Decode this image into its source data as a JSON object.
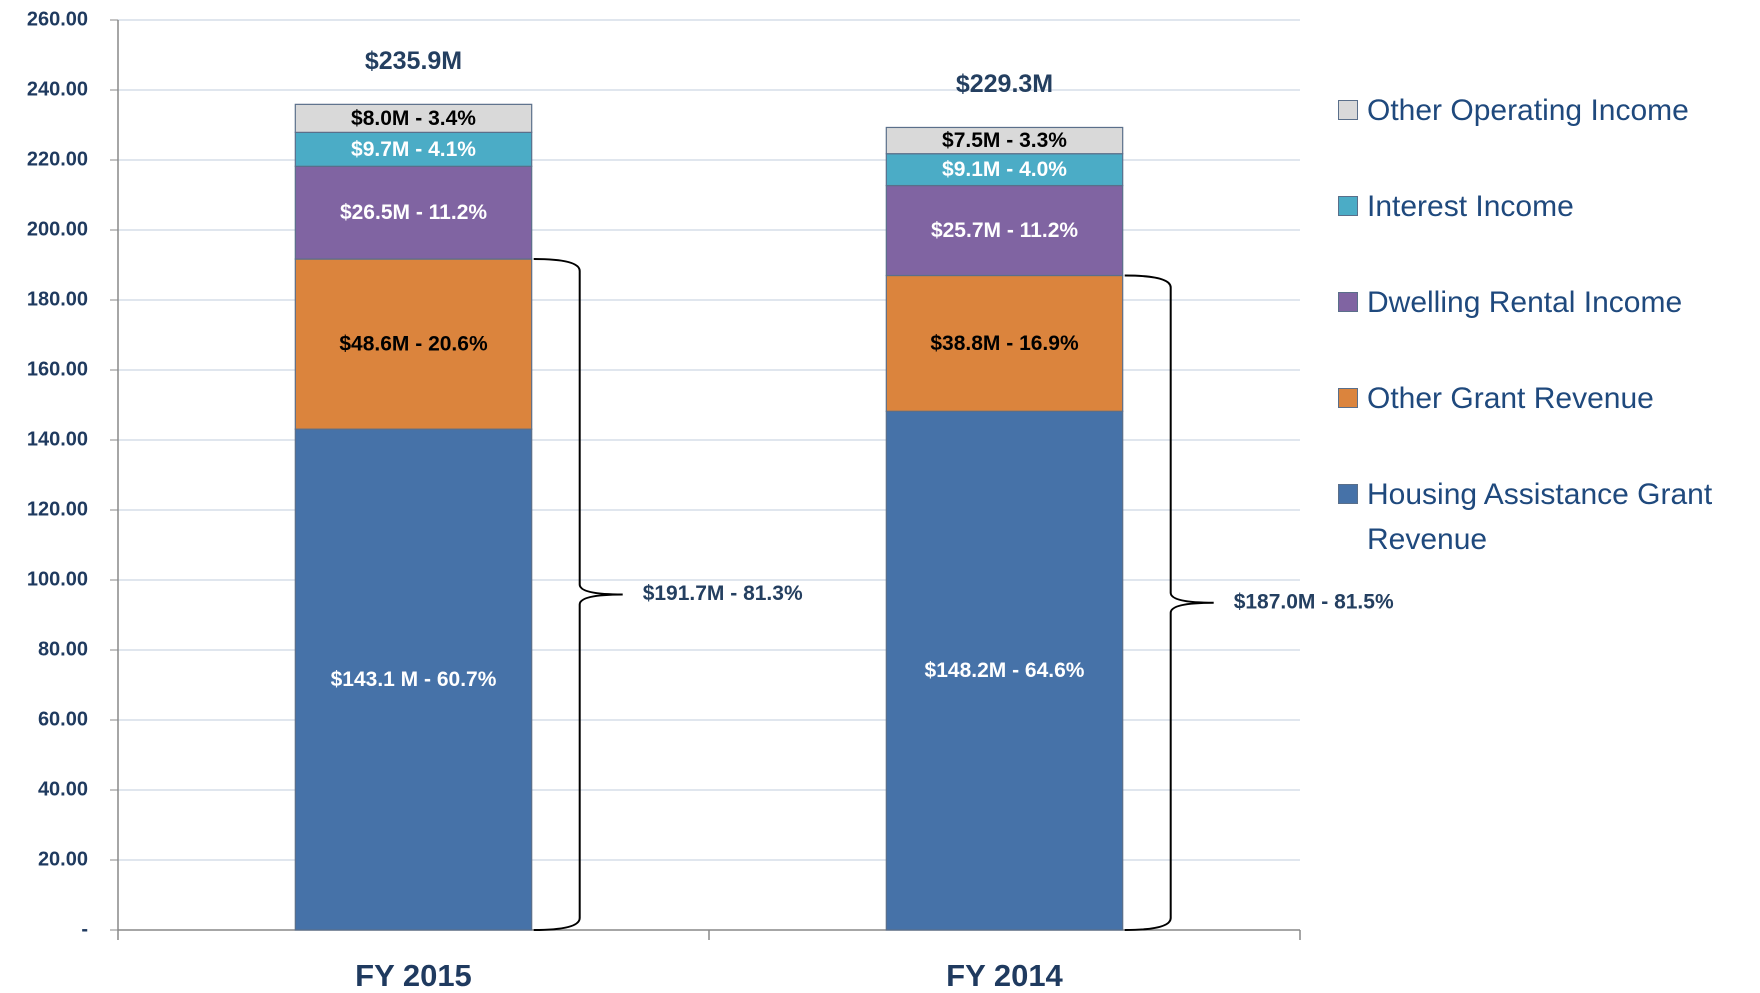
{
  "chart_data": {
    "type": "stacked_bar",
    "categories": [
      "FY 2015",
      "FY 2014"
    ],
    "series": [
      {
        "name": "Housing Assistance Grant Revenue",
        "color": "#4672a8",
        "label_color": "#ffffff",
        "values": [
          143.1,
          148.2
        ],
        "value_labels": [
          "$143.1 M - 60.7%",
          "$148.2M - 64.6%"
        ]
      },
      {
        "name": "Other Grant Revenue",
        "color": "#db843d",
        "label_color": "#000000",
        "values": [
          48.6,
          38.8
        ],
        "value_labels": [
          "$48.6M - 20.6%",
          "$38.8M - 16.9%"
        ]
      },
      {
        "name": "Dwelling Rental Income",
        "color": "#8064a2",
        "label_color": "#ffffff",
        "values": [
          26.5,
          25.7
        ],
        "value_labels": [
          "$26.5M - 11.2%",
          "$25.7M - 11.2%"
        ]
      },
      {
        "name": "Interest Income",
        "color": "#4bacc6",
        "label_color": "#ffffff",
        "values": [
          9.7,
          9.1
        ],
        "value_labels": [
          "$9.7M - 4.1%",
          "$9.1M - 4.0%"
        ]
      },
      {
        "name": "Other Operating Income",
        "color": "#d9d9d9",
        "label_color": "#000000",
        "values": [
          8.0,
          7.5
        ],
        "value_labels": [
          "$8.0M - 3.4%",
          "$7.5M - 3.3%"
        ]
      }
    ],
    "totals": [
      {
        "value": 235.9,
        "label": "$235.9M"
      },
      {
        "value": 229.3,
        "label": "$229.3M"
      }
    ],
    "brackets": [
      {
        "value": 191.7,
        "label": "$191.7M - 81.3%"
      },
      {
        "value": 187.0,
        "label": "$187.0M - 81.5%"
      }
    ],
    "ylim": [
      0,
      260
    ],
    "yticks": [
      {
        "value": 0,
        "label": "-"
      },
      {
        "value": 20,
        "label": "20.00"
      },
      {
        "value": 40,
        "label": "40.00"
      },
      {
        "value": 60,
        "label": "60.00"
      },
      {
        "value": 80,
        "label": "80.00"
      },
      {
        "value": 100,
        "label": "100.00"
      },
      {
        "value": 120,
        "label": "120.00"
      },
      {
        "value": 140,
        "label": "140.00"
      },
      {
        "value": 160,
        "label": "160.00"
      },
      {
        "value": 180,
        "label": "180.00"
      },
      {
        "value": 200,
        "label": "200.00"
      },
      {
        "value": 220,
        "label": "220.00"
      },
      {
        "value": 240,
        "label": "240.00"
      },
      {
        "value": 260,
        "label": "260.00"
      }
    ],
    "grid": true,
    "legend": "right"
  }
}
